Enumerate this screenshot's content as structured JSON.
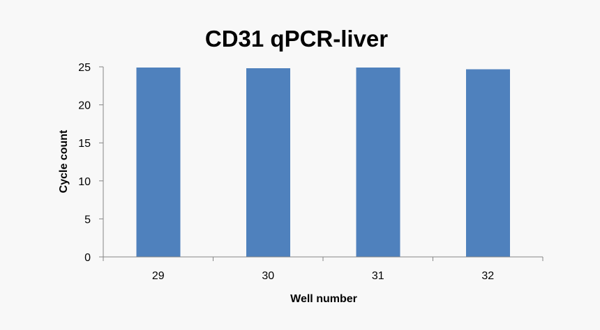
{
  "chart_data": {
    "type": "bar",
    "title": "CD31 qPCR-liver",
    "xlabel": "Well number",
    "ylabel": "Cycle count",
    "categories": [
      "29",
      "30",
      "31",
      "32"
    ],
    "series": [
      {
        "values": [
          24.9,
          24.8,
          24.9,
          24.7
        ]
      }
    ],
    "ylim": [
      0,
      25
    ],
    "yticks": [
      "0",
      "5",
      "10",
      "15",
      "20",
      "25"
    ],
    "grid": false,
    "legend": "none",
    "bar_color": "#4f81bd",
    "axis_color": "#868686",
    "background": "#f8f8f8"
  }
}
